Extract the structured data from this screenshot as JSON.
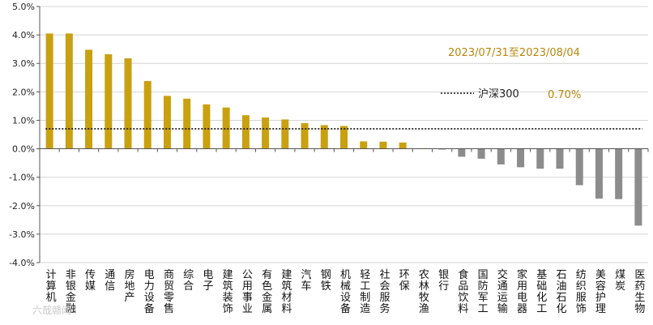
{
  "chart_data": {
    "type": "bar",
    "ylim": [
      -4.0,
      5.0
    ],
    "y_ticks": [
      "5.0%",
      "4.0%",
      "3.0%",
      "2.0%",
      "1.0%",
      "0.0%",
      "-1.0%",
      "-2.0%",
      "-3.0%",
      "-4.0%"
    ],
    "categories": [
      "计算机",
      "非银金融",
      "传媒",
      "通信",
      "房地产",
      "电力设备",
      "商贸零售",
      "综合",
      "电子",
      "建筑装饰",
      "公用事业",
      "有色金属",
      "建筑材料",
      "汽车",
      "钢铁",
      "机械设备",
      "轻工制造",
      "社会服务",
      "环保",
      "农林牧渔",
      "银行",
      "食品饮料",
      "国防军工",
      "交通运输",
      "家用电器",
      "基础化工",
      "石油石化",
      "纺织服饰",
      "美容护理",
      "煤炭",
      "医药生物"
    ],
    "values": [
      4.05,
      4.05,
      3.48,
      3.32,
      3.18,
      2.38,
      1.86,
      1.76,
      1.56,
      1.45,
      1.18,
      1.1,
      1.03,
      0.9,
      0.83,
      0.8,
      0.26,
      0.25,
      0.22,
      0.02,
      -0.02,
      -0.28,
      -0.35,
      -0.55,
      -0.65,
      -0.7,
      -0.7,
      -1.28,
      -1.75,
      -1.77,
      -2.7
    ],
    "positive_color": "#c9a010",
    "negative_color": "#8c8c8c",
    "benchmark": {
      "name": "沪深300",
      "value": 0.7
    },
    "date_range": "2023/07/31至2023/08/04",
    "benchmark_value_label": "0.70%",
    "watermark": "六哉赣闻"
  }
}
